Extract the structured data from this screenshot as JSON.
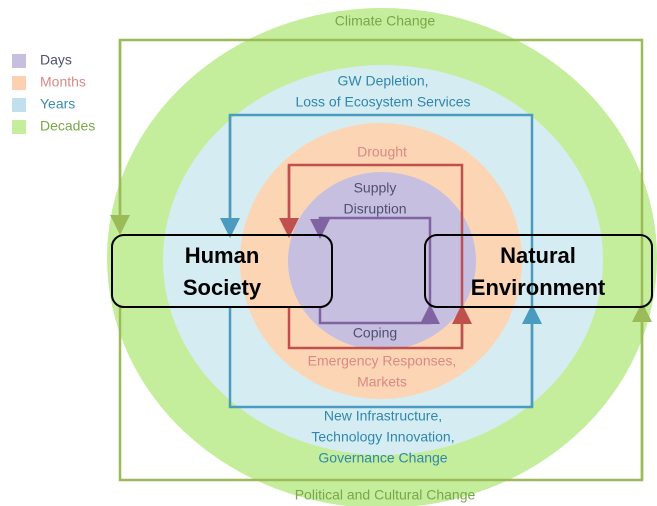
{
  "legend": [
    {
      "label": "Days",
      "color": "#c7bfe0"
    },
    {
      "label": "Months",
      "color": "#fcd0b0"
    },
    {
      "label": "Years",
      "color": "#bfe0ec"
    },
    {
      "label": "Decades",
      "color": "#c4ee9c"
    }
  ],
  "loops": {
    "decades": {
      "top": [
        "Climate Change"
      ],
      "bottom": [
        "Political and Cultural Change"
      ]
    },
    "years": {
      "top": [
        "GW Depletion,",
        "Loss of Ecosystem Services"
      ],
      "bottom": [
        "New Infrastructure,",
        "Technology Innovation,",
        "Governance Change"
      ]
    },
    "months": {
      "top": [
        "Drought"
      ],
      "bottom": [
        "Emergency Responses,",
        "Markets"
      ]
    },
    "days": {
      "top": [
        "Supply",
        "Disruption"
      ],
      "bottom": [
        "Coping"
      ]
    }
  },
  "boxes": {
    "human": [
      "Human",
      "Society"
    ],
    "natural": [
      "Natural",
      "Environment"
    ]
  }
}
